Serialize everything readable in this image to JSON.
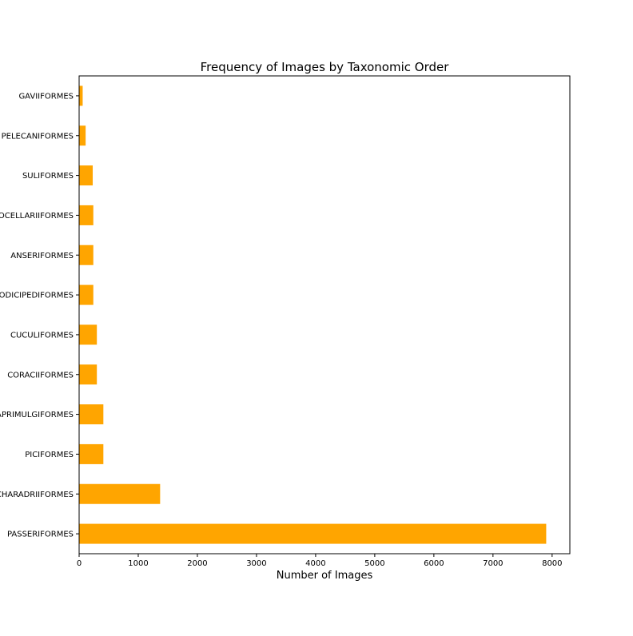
{
  "chart_data": {
    "type": "bar",
    "orientation": "horizontal",
    "title": "Frequency of Images by Taxonomic Order",
    "xlabel": "Number of Images",
    "ylabel": "",
    "xlim": [
      0,
      8300
    ],
    "xticks": [
      0,
      1000,
      2000,
      3000,
      4000,
      5000,
      6000,
      7000,
      8000
    ],
    "bar_color": "#ffa500",
    "grid": false,
    "legend": "none",
    "categories": [
      "GAVIIFORMES",
      "PELECANIFORMES",
      "SULIFORMES",
      "PROCELLARIIFORMES",
      "ANSERIFORMES",
      "PODICIPEDIFORMES",
      "CUCULIFORMES",
      "CORACIIFORMES",
      "CAPRIMULGIFORMES",
      "PICIFORMES",
      "CHARADRIIFORMES",
      "PASSERIFORMES"
    ],
    "values": [
      60,
      110,
      230,
      240,
      240,
      240,
      300,
      300,
      410,
      410,
      1370,
      7900
    ]
  }
}
